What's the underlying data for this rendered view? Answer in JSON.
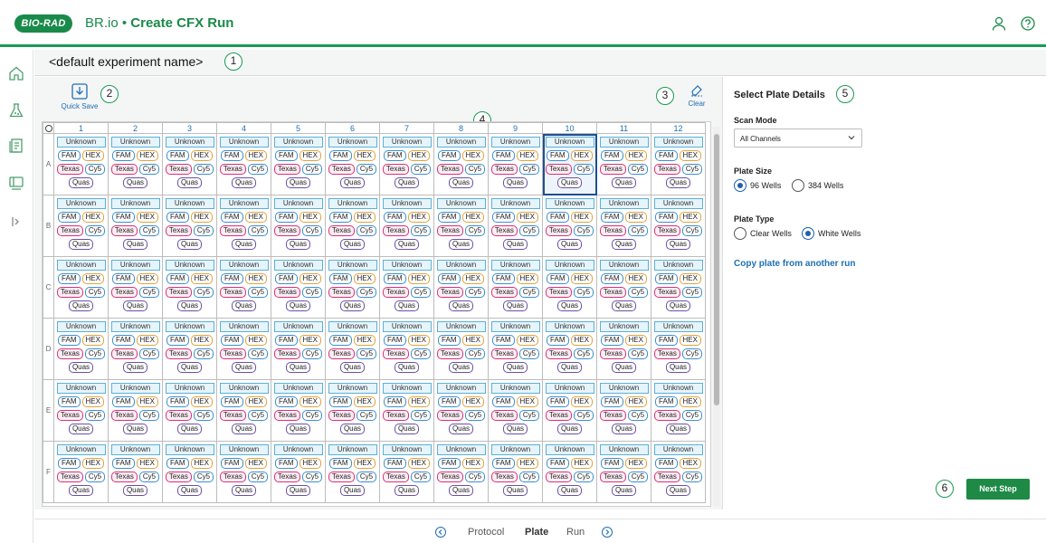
{
  "header": {
    "logo_text": "BIO-RAD",
    "app_name": "BR.io",
    "separator": " • ",
    "page_title": "Create CFX Run",
    "icons": [
      "user-icon",
      "help-icon"
    ]
  },
  "rail": {
    "icons": [
      "home-icon",
      "flask-icon",
      "notebook-icon",
      "instrument-icon",
      "expand-icon"
    ]
  },
  "experiment": {
    "name": "<default experiment name>"
  },
  "callouts": [
    "1",
    "2",
    "3",
    "4",
    "5",
    "6"
  ],
  "toolbar": {
    "quick_save_label": "Quick Save",
    "clear_label": "Clear"
  },
  "plate": {
    "columns": [
      "1",
      "2",
      "3",
      "4",
      "5",
      "6",
      "7",
      "8",
      "9",
      "10",
      "11",
      "12"
    ],
    "rows": [
      "A",
      "B",
      "C",
      "D",
      "E",
      "F"
    ],
    "well_type": "Unknown",
    "dyes": [
      "FAM",
      "HEX",
      "Texas",
      "Cy5",
      "Quas"
    ],
    "selected_well": "A10",
    "colors": {
      "selected_outline": "#1f4f8f",
      "unknown_border": "#5bb0d8",
      "fam": "#3a8fd1",
      "hex": "#e3a23a",
      "texas": "#d7337a",
      "cy5": "#3a8fd1",
      "quas": "#6c4fa8"
    }
  },
  "panel": {
    "title": "Select Plate Details",
    "scan_mode_label": "Scan Mode",
    "scan_mode_value": "All Channels",
    "plate_size_label": "Plate Size",
    "plate_size_options": [
      "96 Wells",
      "384 Wells"
    ],
    "plate_size_selected": "96 Wells",
    "plate_type_label": "Plate Type",
    "plate_type_options": [
      "Clear Wells",
      "White Wells"
    ],
    "plate_type_selected": "White Wells",
    "copy_link": "Copy plate from another run",
    "next_button": "Next Step"
  },
  "footer": {
    "steps": [
      "Protocol",
      "Plate",
      "Run"
    ],
    "active": "Plate"
  },
  "theme": {
    "brand_green": "#1a8a4a",
    "link_blue": "#1f6fb2"
  }
}
